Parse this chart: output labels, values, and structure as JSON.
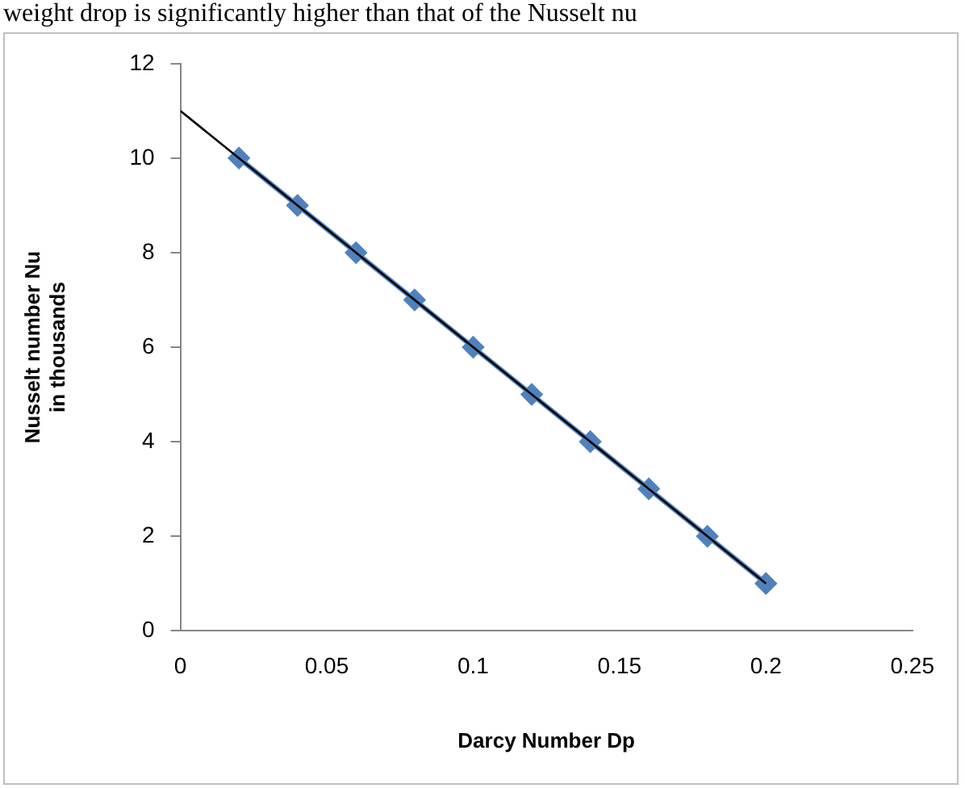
{
  "chart_data": {
    "type": "line",
    "xlabel": "Darcy Number Dp",
    "ylabel": "Nusselt number Nu\nin thousands",
    "annotations": [
      "weight drop is significantly higher than that of the Nusselt nu"
    ],
    "x": [
      0.02,
      0.04,
      0.06,
      0.08,
      0.1,
      0.12,
      0.14,
      0.16,
      0.18,
      0.2
    ],
    "series": [
      {
        "type": "line",
        "color": "#000000",
        "marker": "none",
        "x": [
          0,
          0.2
        ],
        "values": [
          11,
          1
        ]
      },
      {
        "type": "line",
        "color": "#4f81bd",
        "marker": "diamond",
        "values": [
          10,
          9,
          8,
          7,
          6,
          5,
          4,
          3,
          2,
          1
        ]
      }
    ],
    "xlim": [
      0,
      0.25
    ],
    "xticks": [
      0,
      0.05,
      0.1,
      0.15,
      0.2,
      0.25
    ],
    "ylim": [
      0,
      12
    ],
    "yticks": [
      0,
      2,
      4,
      6,
      8,
      10,
      12
    ],
    "grid": false,
    "legend": false
  }
}
